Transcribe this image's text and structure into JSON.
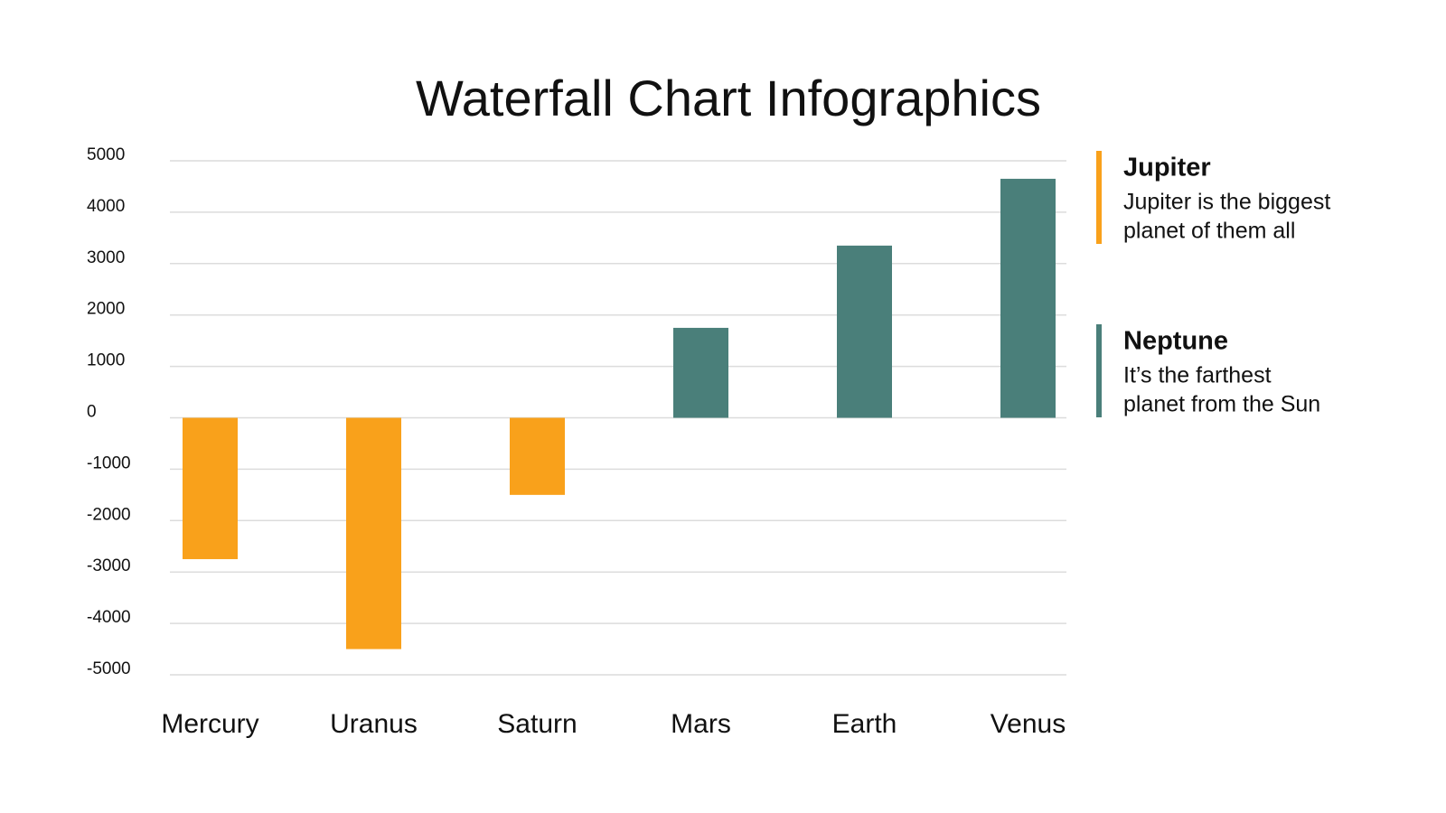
{
  "chart_data": {
    "type": "bar",
    "title": "Waterfall Chart Infographics",
    "categories": [
      "Mercury",
      "Uranus",
      "Saturn",
      "Mars",
      "Earth",
      "Venus"
    ],
    "series": [
      {
        "name": "Jupiter",
        "color": "#f9a11b",
        "description": [
          "Jupiter is the biggest",
          "planet of them all"
        ],
        "values": [
          -2750,
          -4500,
          -1500,
          null,
          null,
          null
        ]
      },
      {
        "name": "Neptune",
        "color": "#4a7f7a",
        "description": [
          "It’s the farthest",
          "planet from the Sun"
        ],
        "values": [
          null,
          null,
          null,
          1750,
          3350,
          4650
        ]
      }
    ],
    "ylim": [
      -5000,
      5000
    ],
    "yticks": [
      5000,
      4000,
      3000,
      2000,
      1000,
      0,
      -1000,
      -2000,
      -3000,
      -4000,
      -5000
    ],
    "grid": true,
    "legend": "right"
  }
}
